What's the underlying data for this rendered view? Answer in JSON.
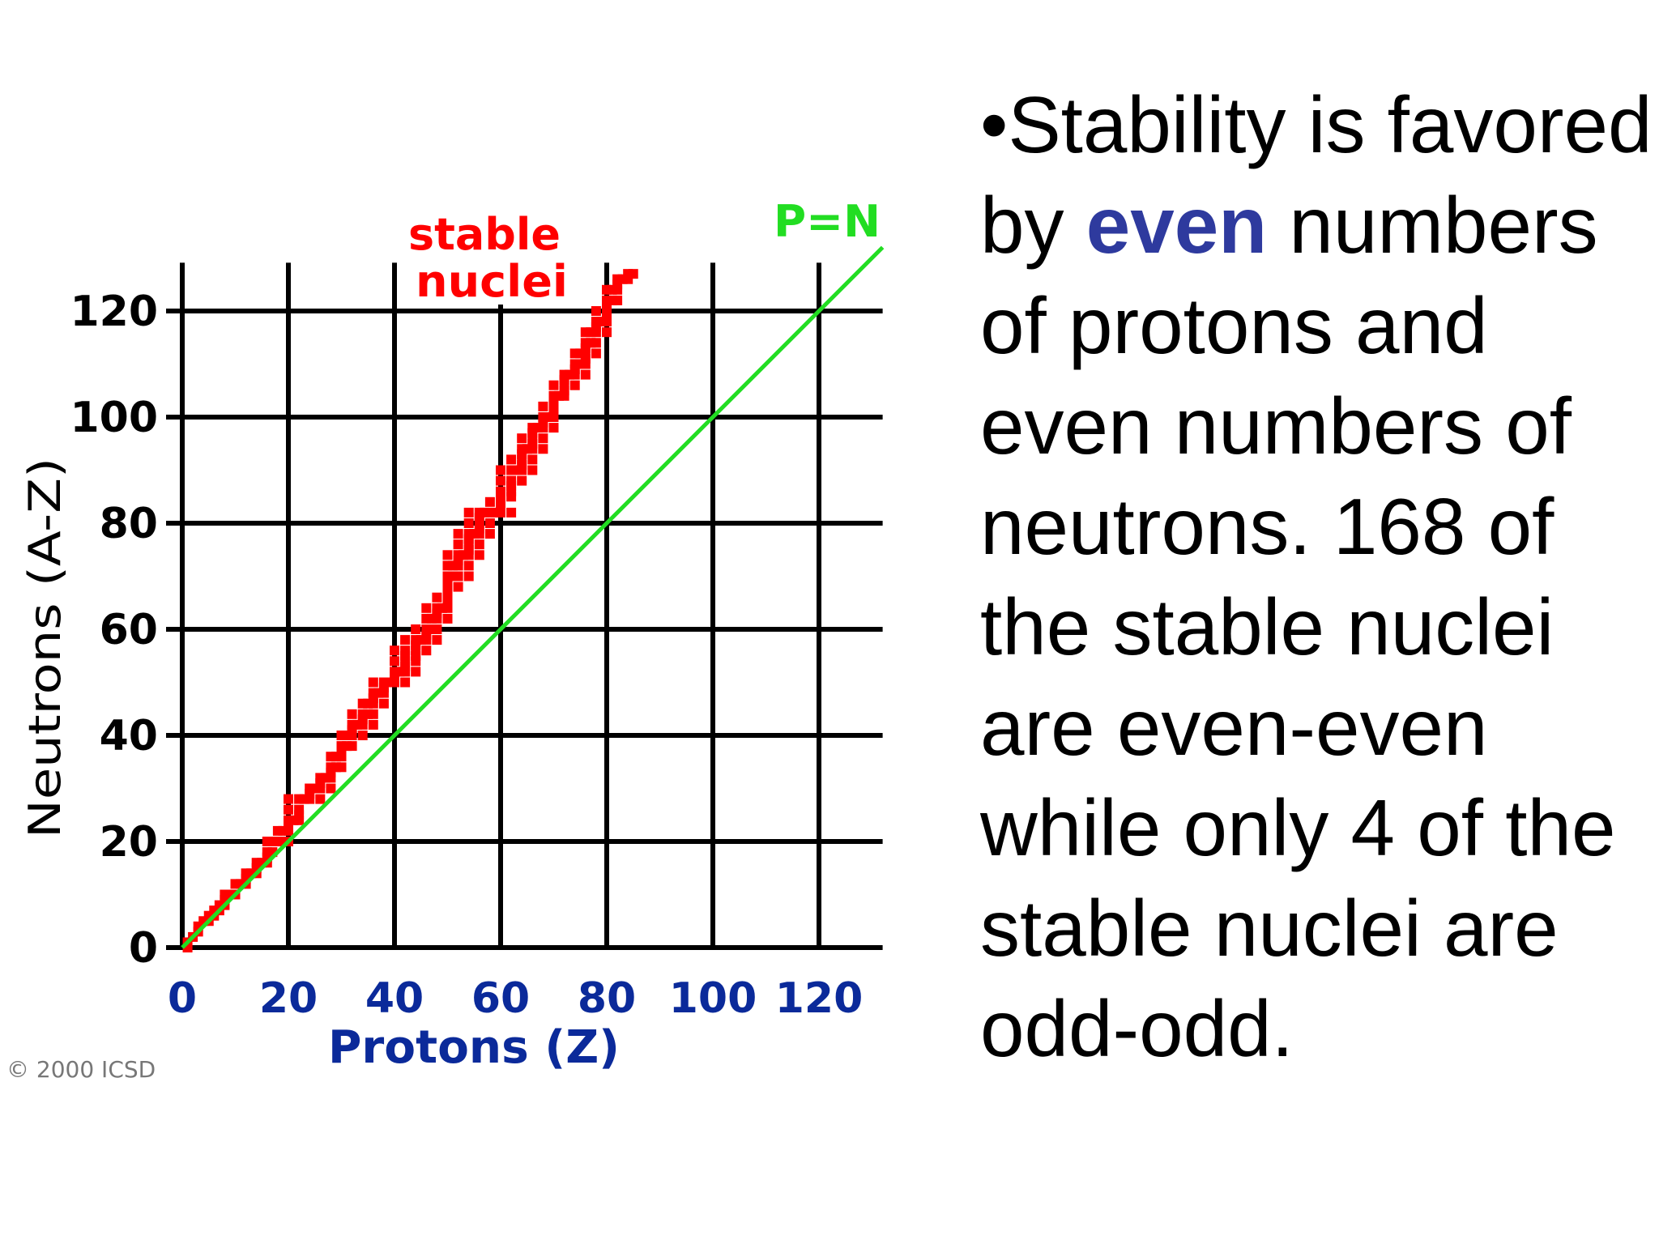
{
  "slide": {
    "copyright": "© 2000 ICSD",
    "bullet": "•",
    "text_before": "Stability is favored by ",
    "text_highlight": "even",
    "text_after": " numbers of protons and even numbers of neutrons. 168 of the stable nuclei are even-even while only 4 of the stable nuclei are odd-odd.",
    "highlight_color": "#2e3a9e"
  },
  "chart_data": {
    "type": "scatter",
    "title": "",
    "xlabel": "Protons  (Z)",
    "ylabel": "Neutrons  (A-Z)",
    "xlim": [
      0,
      132
    ],
    "ylim": [
      0,
      132
    ],
    "x_ticks": [
      0,
      20,
      40,
      60,
      80,
      100,
      120
    ],
    "y_ticks": [
      0,
      20,
      40,
      60,
      80,
      100,
      120
    ],
    "grid": true,
    "annotations": [
      {
        "text": "stable",
        "color": "#ff0000"
      },
      {
        "text": "nuclei",
        "color": "#ff0000"
      },
      {
        "text": "P=N",
        "color": "#22dd22"
      }
    ],
    "series": [
      {
        "name": "stable nuclei",
        "color": "#ff0000",
        "points": [
          [
            1,
            0
          ],
          [
            1,
            1
          ],
          [
            2,
            2
          ],
          [
            3,
            3
          ],
          [
            3,
            4
          ],
          [
            4,
            5
          ],
          [
            5,
            6
          ],
          [
            5,
            5
          ],
          [
            6,
            6
          ],
          [
            6,
            7
          ],
          [
            7,
            7
          ],
          [
            7,
            8
          ],
          [
            8,
            8
          ],
          [
            8,
            9
          ],
          [
            8,
            10
          ],
          [
            9,
            10
          ],
          [
            10,
            10
          ],
          [
            10,
            12
          ],
          [
            11,
            12
          ],
          [
            12,
            12
          ],
          [
            12,
            13
          ],
          [
            12,
            14
          ],
          [
            13,
            14
          ],
          [
            14,
            14
          ],
          [
            14,
            15
          ],
          [
            14,
            16
          ],
          [
            15,
            16
          ],
          [
            16,
            16
          ],
          [
            16,
            17
          ],
          [
            16,
            18
          ],
          [
            16,
            20
          ],
          [
            17,
            18
          ],
          [
            17,
            20
          ],
          [
            18,
            20
          ],
          [
            18,
            22
          ],
          [
            19,
            20
          ],
          [
            19,
            22
          ],
          [
            20,
            20
          ],
          [
            20,
            22
          ],
          [
            20,
            23
          ],
          [
            20,
            24
          ],
          [
            20,
            26
          ],
          [
            20,
            28
          ],
          [
            21,
            24
          ],
          [
            22,
            24
          ],
          [
            22,
            25
          ],
          [
            22,
            26
          ],
          [
            22,
            28
          ],
          [
            23,
            28
          ],
          [
            24,
            28
          ],
          [
            24,
            29
          ],
          [
            24,
            30
          ],
          [
            25,
            30
          ],
          [
            26,
            28
          ],
          [
            26,
            30
          ],
          [
            26,
            31
          ],
          [
            26,
            32
          ],
          [
            27,
            32
          ],
          [
            28,
            30
          ],
          [
            28,
            32
          ],
          [
            28,
            33
          ],
          [
            28,
            34
          ],
          [
            28,
            36
          ],
          [
            29,
            34
          ],
          [
            29,
            36
          ],
          [
            30,
            34
          ],
          [
            30,
            36
          ],
          [
            30,
            37
          ],
          [
            30,
            38
          ],
          [
            30,
            40
          ],
          [
            31,
            38
          ],
          [
            31,
            40
          ],
          [
            32,
            38
          ],
          [
            32,
            40
          ],
          [
            32,
            41
          ],
          [
            32,
            42
          ],
          [
            32,
            44
          ],
          [
            33,
            42
          ],
          [
            34,
            40
          ],
          [
            34,
            42
          ],
          [
            34,
            43
          ],
          [
            34,
            44
          ],
          [
            34,
            46
          ],
          [
            35,
            44
          ],
          [
            35,
            46
          ],
          [
            36,
            42
          ],
          [
            36,
            44
          ],
          [
            36,
            46
          ],
          [
            36,
            47
          ],
          [
            36,
            48
          ],
          [
            36,
            50
          ],
          [
            37,
            48
          ],
          [
            38,
            46
          ],
          [
            38,
            48
          ],
          [
            38,
            49
          ],
          [
            38,
            50
          ],
          [
            39,
            50
          ],
          [
            40,
            50
          ],
          [
            40,
            51
          ],
          [
            40,
            52
          ],
          [
            40,
            54
          ],
          [
            40,
            56
          ],
          [
            41,
            52
          ],
          [
            42,
            50
          ],
          [
            42,
            52
          ],
          [
            42,
            53
          ],
          [
            42,
            54
          ],
          [
            42,
            55
          ],
          [
            42,
            56
          ],
          [
            42,
            58
          ],
          [
            44,
            52
          ],
          [
            44,
            54
          ],
          [
            44,
            55
          ],
          [
            44,
            56
          ],
          [
            44,
            57
          ],
          [
            44,
            58
          ],
          [
            44,
            60
          ],
          [
            45,
            58
          ],
          [
            46,
            56
          ],
          [
            46,
            58
          ],
          [
            46,
            59
          ],
          [
            46,
            60
          ],
          [
            46,
            62
          ],
          [
            46,
            64
          ],
          [
            47,
            60
          ],
          [
            47,
            62
          ],
          [
            48,
            58
          ],
          [
            48,
            60
          ],
          [
            48,
            62
          ],
          [
            48,
            63
          ],
          [
            48,
            64
          ],
          [
            48,
            66
          ],
          [
            49,
            64
          ],
          [
            50,
            62
          ],
          [
            50,
            64
          ],
          [
            50,
            65
          ],
          [
            50,
            66
          ],
          [
            50,
            67
          ],
          [
            50,
            68
          ],
          [
            50,
            69
          ],
          [
            50,
            70
          ],
          [
            50,
            72
          ],
          [
            50,
            74
          ],
          [
            51,
            70
          ],
          [
            51,
            72
          ],
          [
            52,
            68
          ],
          [
            52,
            70
          ],
          [
            52,
            72
          ],
          [
            52,
            73
          ],
          [
            52,
            74
          ],
          [
            52,
            76
          ],
          [
            52,
            78
          ],
          [
            53,
            74
          ],
          [
            54,
            70
          ],
          [
            54,
            72
          ],
          [
            54,
            74
          ],
          [
            54,
            75
          ],
          [
            54,
            76
          ],
          [
            54,
            77
          ],
          [
            54,
            78
          ],
          [
            54,
            80
          ],
          [
            54,
            82
          ],
          [
            55,
            78
          ],
          [
            56,
            74
          ],
          [
            56,
            76
          ],
          [
            56,
            78
          ],
          [
            56,
            79
          ],
          [
            56,
            80
          ],
          [
            56,
            81
          ],
          [
            56,
            82
          ],
          [
            57,
            82
          ],
          [
            58,
            78
          ],
          [
            58,
            80
          ],
          [
            58,
            82
          ],
          [
            58,
            84
          ],
          [
            59,
            82
          ],
          [
            60,
            82
          ],
          [
            60,
            83
          ],
          [
            60,
            84
          ],
          [
            60,
            85
          ],
          [
            60,
            86
          ],
          [
            60,
            88
          ],
          [
            60,
            90
          ],
          [
            62,
            82
          ],
          [
            62,
            85
          ],
          [
            62,
            86
          ],
          [
            62,
            87
          ],
          [
            62,
            88
          ],
          [
            62,
            90
          ],
          [
            62,
            92
          ],
          [
            63,
            90
          ],
          [
            64,
            88
          ],
          [
            64,
            90
          ],
          [
            64,
            91
          ],
          [
            64,
            92
          ],
          [
            64,
            93
          ],
          [
            64,
            94
          ],
          [
            64,
            96
          ],
          [
            65,
            94
          ],
          [
            66,
            90
          ],
          [
            66,
            92
          ],
          [
            66,
            94
          ],
          [
            66,
            95
          ],
          [
            66,
            96
          ],
          [
            66,
            97
          ],
          [
            66,
            98
          ],
          [
            67,
            98
          ],
          [
            68,
            94
          ],
          [
            68,
            96
          ],
          [
            68,
            98
          ],
          [
            68,
            99
          ],
          [
            68,
            100
          ],
          [
            68,
            102
          ],
          [
            69,
            100
          ],
          [
            70,
            98
          ],
          [
            70,
            100
          ],
          [
            70,
            101
          ],
          [
            70,
            102
          ],
          [
            70,
            103
          ],
          [
            70,
            104
          ],
          [
            70,
            106
          ],
          [
            71,
            104
          ],
          [
            72,
            104
          ],
          [
            72,
            105
          ],
          [
            72,
            106
          ],
          [
            72,
            107
          ],
          [
            72,
            108
          ],
          [
            73,
            108
          ],
          [
            74,
            106
          ],
          [
            74,
            108
          ],
          [
            74,
            109
          ],
          [
            74,
            110
          ],
          [
            74,
            112
          ],
          [
            75,
            110
          ],
          [
            75,
            112
          ],
          [
            76,
            108
          ],
          [
            76,
            110
          ],
          [
            76,
            111
          ],
          [
            76,
            112
          ],
          [
            76,
            113
          ],
          [
            76,
            114
          ],
          [
            76,
            116
          ],
          [
            77,
            114
          ],
          [
            77,
            116
          ],
          [
            78,
            112
          ],
          [
            78,
            114
          ],
          [
            78,
            116
          ],
          [
            78,
            117
          ],
          [
            78,
            118
          ],
          [
            78,
            120
          ],
          [
            79,
            118
          ],
          [
            80,
            116
          ],
          [
            80,
            118
          ],
          [
            80,
            119
          ],
          [
            80,
            120
          ],
          [
            80,
            121
          ],
          [
            80,
            122
          ],
          [
            80,
            124
          ],
          [
            81,
            122
          ],
          [
            81,
            124
          ],
          [
            82,
            122
          ],
          [
            82,
            124
          ],
          [
            82,
            125
          ],
          [
            82,
            126
          ],
          [
            83,
            126
          ],
          [
            84,
            126
          ],
          [
            84,
            127
          ],
          [
            85,
            127
          ]
        ]
      },
      {
        "name": "P=N",
        "color": "#22dd22",
        "line": [
          [
            0,
            0
          ],
          [
            132,
            132
          ]
        ]
      }
    ]
  }
}
